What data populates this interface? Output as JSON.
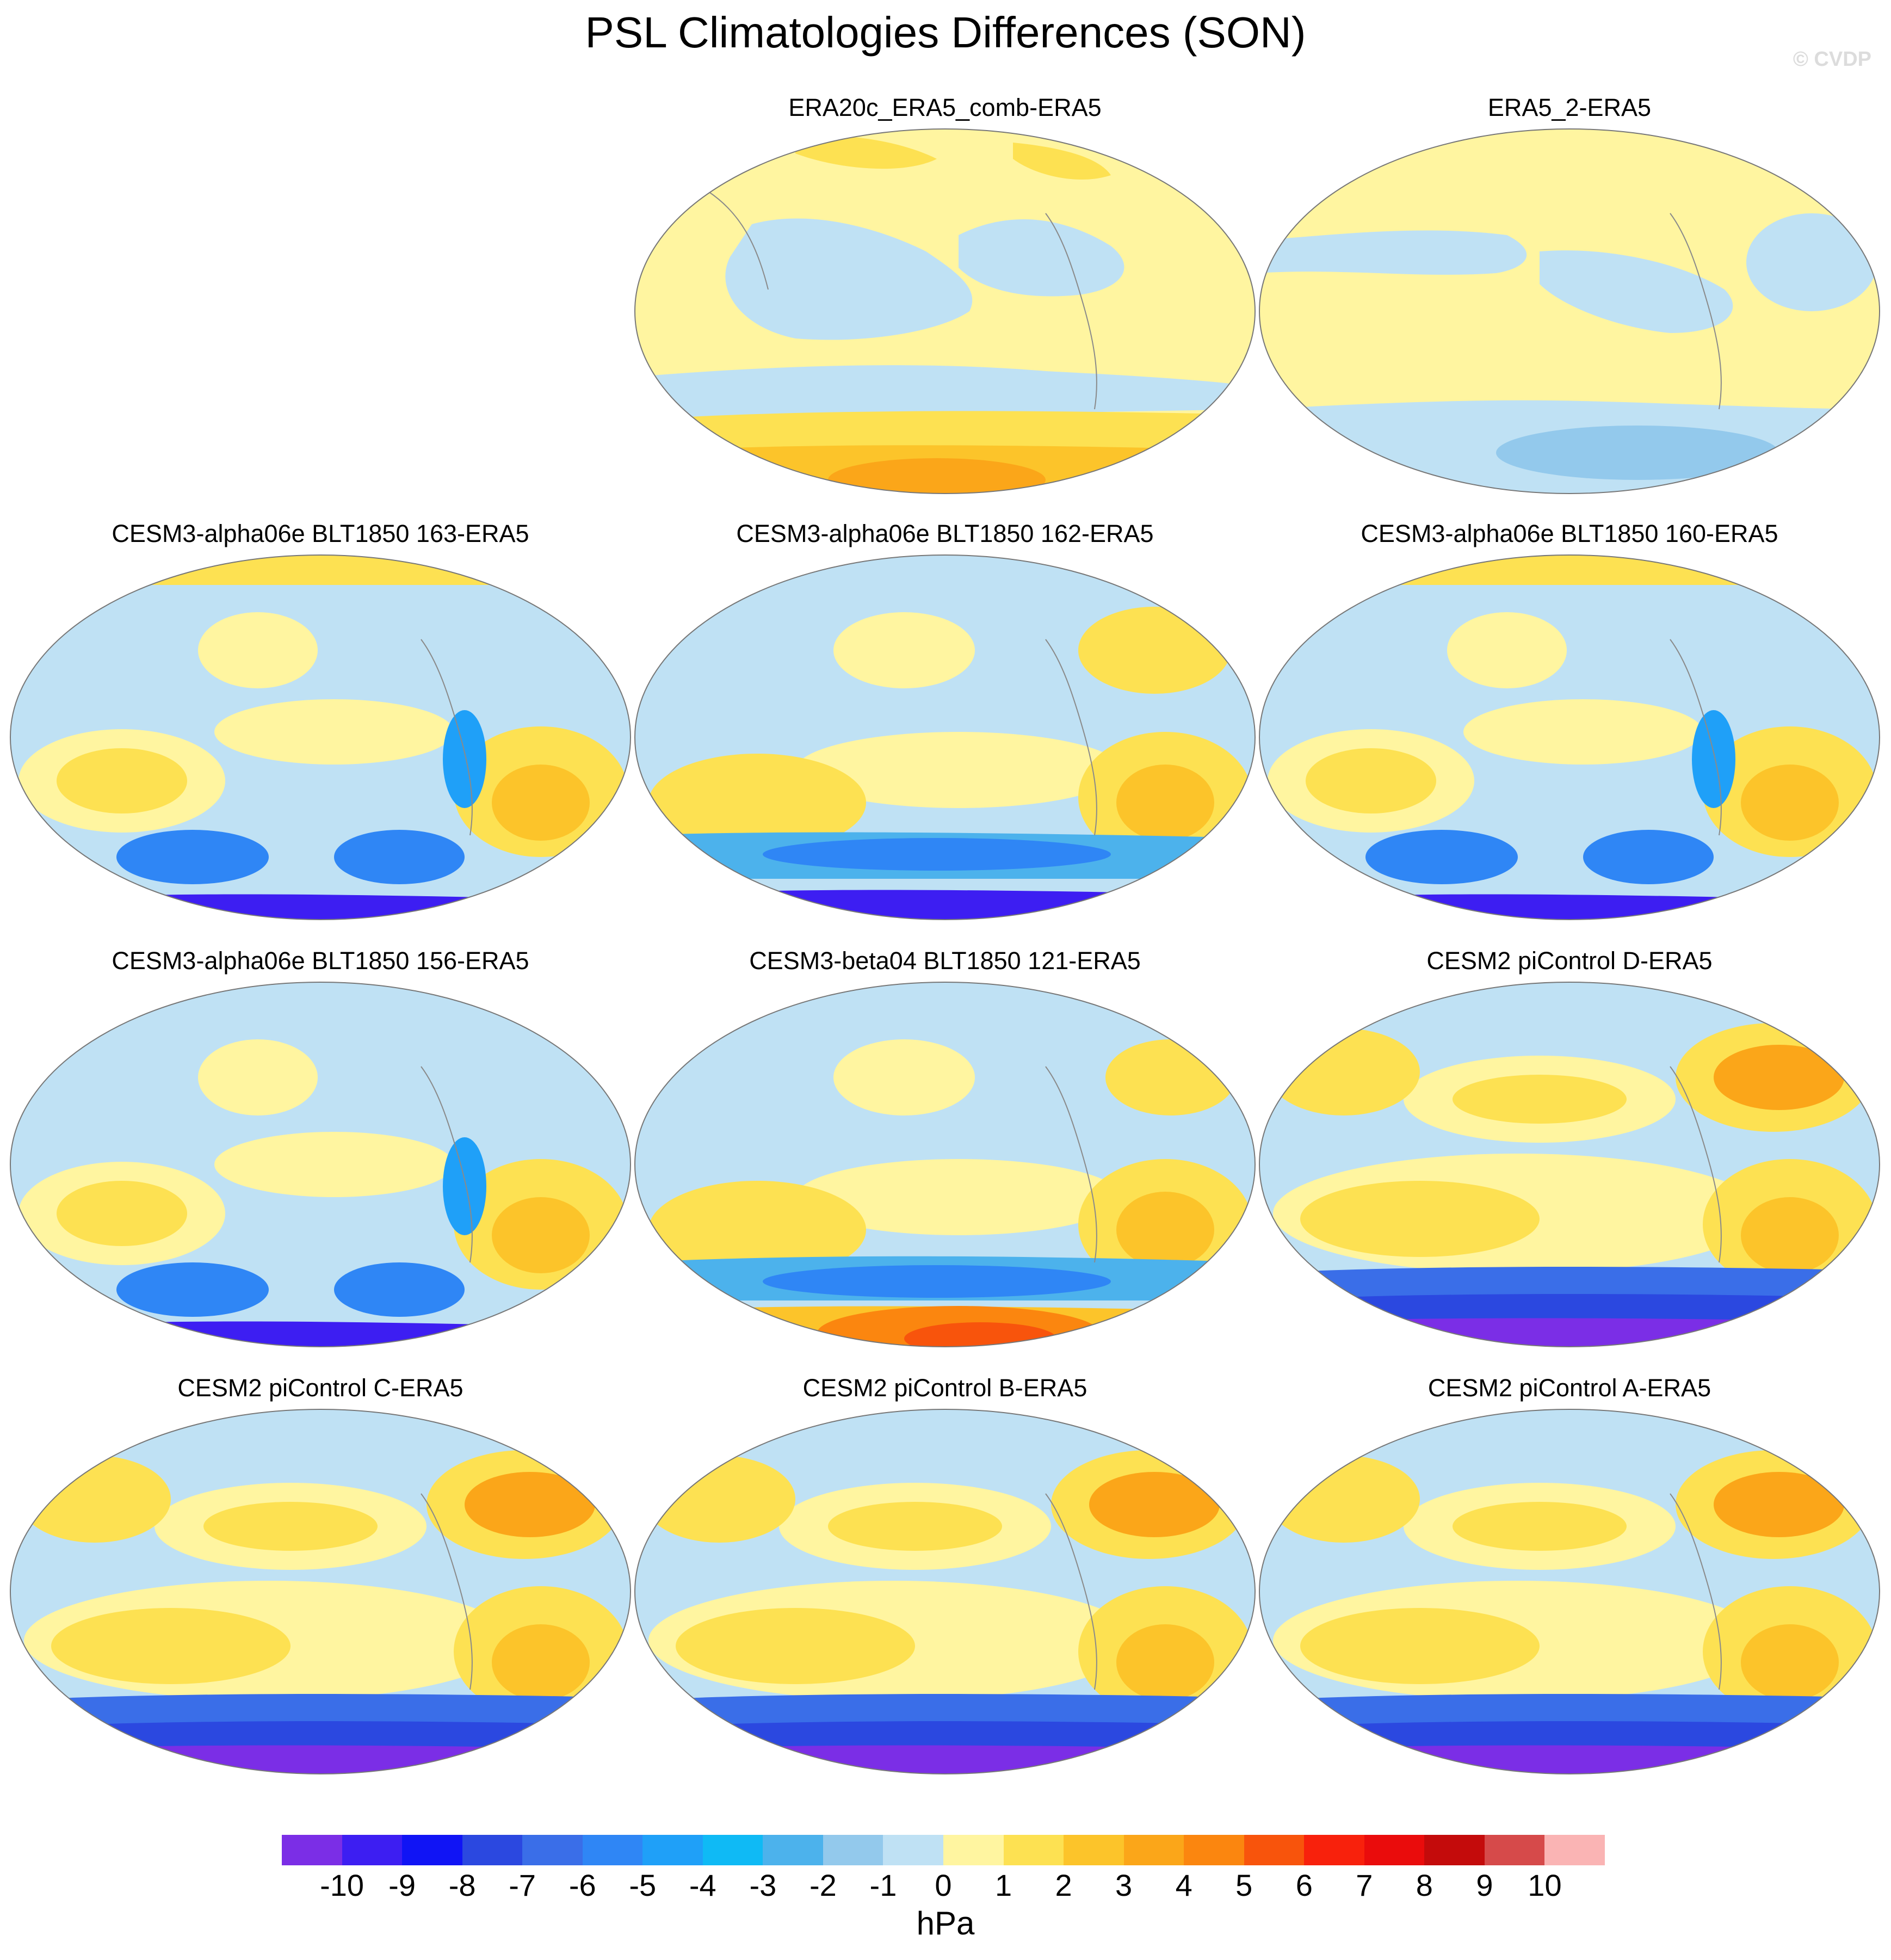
{
  "title": "PSL Climatologies Differences (SON)",
  "credit": "© CVDP",
  "colorbar": {
    "units": "hPa",
    "ticks": [
      "-10",
      "-9",
      "-8",
      "-7",
      "-6",
      "-5",
      "-4",
      "-3",
      "-2",
      "-1",
      "0",
      "1",
      "2",
      "3",
      "4",
      "5",
      "6",
      "7",
      "8",
      "9",
      "10"
    ],
    "colors": [
      "#7b2ee6",
      "#3d1ef2",
      "#1014f5",
      "#2b48e0",
      "#3a6ee8",
      "#2f86f5",
      "#1fa0f8",
      "#0fbaf5",
      "#4cb2ec",
      "#93c9ec",
      "#bfe1f4",
      "#fff5a0",
      "#fde152",
      "#fcc42a",
      "#fba619",
      "#fb860f",
      "#f8540c",
      "#f8210c",
      "#ea0c0c",
      "#c40b0b",
      "#d64a4a",
      "#fab4b4"
    ]
  },
  "panels": [
    {
      "title": "ERA20c_ERA5_comb-ERA5",
      "blank": false
    },
    {
      "title": "ERA5_2-ERA5",
      "blank": false
    },
    {
      "title": "CESM3-alpha06e BLT1850 163-ERA5",
      "blank": false
    },
    {
      "title": "CESM3-alpha06e BLT1850 162-ERA5",
      "blank": false
    },
    {
      "title": "CESM3-alpha06e BLT1850 160-ERA5",
      "blank": false
    },
    {
      "title": "CESM3-alpha06e BLT1850 156-ERA5",
      "blank": false
    },
    {
      "title": "CESM3-beta04 BLT1850 121-ERA5",
      "blank": false
    },
    {
      "title": "CESM2 piControl D-ERA5",
      "blank": false
    },
    {
      "title": "CESM2 piControl C-ERA5",
      "blank": false
    },
    {
      "title": "CESM2 piControl B-ERA5",
      "blank": false
    },
    {
      "title": "CESM2 piControl A-ERA5",
      "blank": false
    }
  ]
}
